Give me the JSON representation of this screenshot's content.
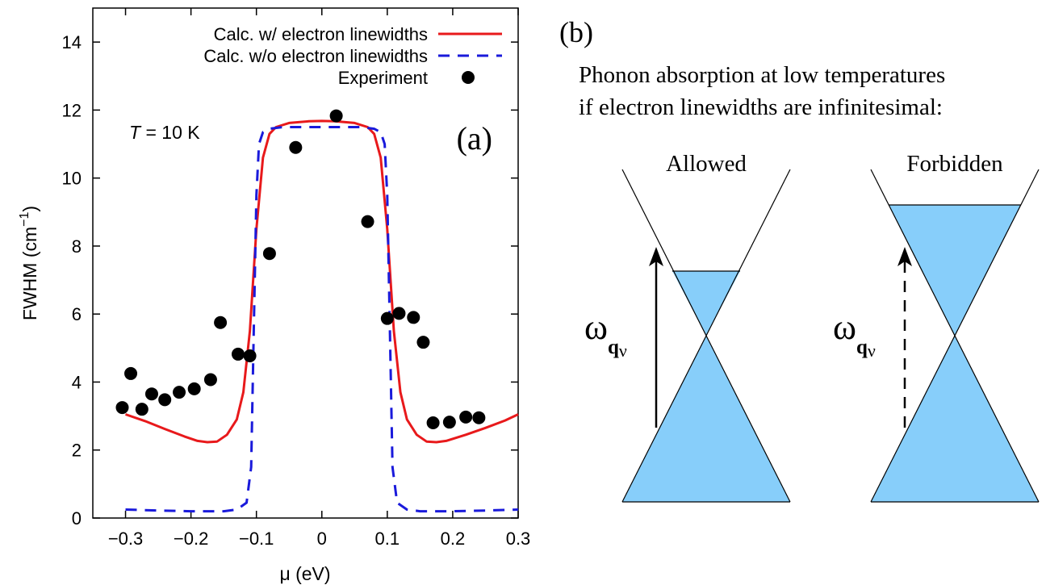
{
  "chart_data": {
    "type": "line",
    "panel_label": "(a)",
    "annotation": {
      "italic": "T",
      "rest": " = 10 K"
    },
    "xlabel": "μ (eV)",
    "ylabel_main": "FWHM (cm",
    "ylabel_sup": "−1",
    "ylabel_close": ")",
    "xlim": [
      -0.35,
      0.3
    ],
    "ylim": [
      0,
      15
    ],
    "xticks": [
      {
        "v": -0.3,
        "label": "−0.3"
      },
      {
        "v": -0.2,
        "label": "−0.2"
      },
      {
        "v": -0.1,
        "label": "−0.1"
      },
      {
        "v": 0,
        "label": "0"
      },
      {
        "v": 0.1,
        "label": "0.1"
      },
      {
        "v": 0.2,
        "label": "0.2"
      },
      {
        "v": 0.3,
        "label": "0.3"
      }
    ],
    "yticks": [
      {
        "v": 0,
        "label": "0"
      },
      {
        "v": 2,
        "label": "2"
      },
      {
        "v": 4,
        "label": "4"
      },
      {
        "v": 6,
        "label": "6"
      },
      {
        "v": 8,
        "label": "8"
      },
      {
        "v": 10,
        "label": "10"
      },
      {
        "v": 12,
        "label": "12"
      },
      {
        "v": 14,
        "label": "14"
      }
    ],
    "legend_position": "top-right",
    "series": [
      {
        "name": "Calc. w/ electron linewidths",
        "style": "solid",
        "color": "#e8191b",
        "x": [
          -0.3,
          -0.27,
          -0.24,
          -0.21,
          -0.19,
          -0.175,
          -0.16,
          -0.145,
          -0.13,
          -0.12,
          -0.11,
          -0.1,
          -0.09,
          -0.08,
          -0.07,
          -0.05,
          -0.02,
          0,
          0.02,
          0.05,
          0.07,
          0.08,
          0.09,
          0.1,
          0.11,
          0.12,
          0.13,
          0.145,
          0.16,
          0.175,
          0.19,
          0.22,
          0.25,
          0.28,
          0.3
        ],
        "y": [
          3.05,
          2.85,
          2.62,
          2.4,
          2.27,
          2.23,
          2.25,
          2.45,
          2.9,
          3.7,
          5.5,
          8.5,
          10.6,
          11.3,
          11.5,
          11.62,
          11.67,
          11.68,
          11.67,
          11.62,
          11.5,
          11.3,
          10.6,
          8.5,
          5.5,
          3.7,
          2.9,
          2.45,
          2.25,
          2.23,
          2.27,
          2.45,
          2.65,
          2.87,
          3.05
        ]
      },
      {
        "name": "Calc. w/o electron linewidths",
        "style": "dashed",
        "color": "#1a1adb",
        "x": [
          -0.3,
          -0.25,
          -0.2,
          -0.15,
          -0.13,
          -0.115,
          -0.108,
          -0.104,
          -0.1,
          -0.096,
          -0.09,
          -0.08,
          -0.06,
          0,
          0.06,
          0.08,
          0.09,
          0.096,
          0.1,
          0.104,
          0.108,
          0.115,
          0.13,
          0.15,
          0.2,
          0.25,
          0.3
        ],
        "y": [
          0.25,
          0.22,
          0.2,
          0.2,
          0.25,
          0.45,
          1.5,
          5.5,
          9.5,
          11.0,
          11.35,
          11.45,
          11.5,
          11.5,
          11.5,
          11.45,
          11.35,
          11.0,
          9.5,
          5.5,
          1.5,
          0.45,
          0.25,
          0.2,
          0.2,
          0.22,
          0.25
        ]
      },
      {
        "name": "Experiment",
        "style": "points",
        "color": "#000000",
        "x": [
          -0.305,
          -0.292,
          -0.275,
          -0.26,
          -0.24,
          -0.218,
          -0.195,
          -0.17,
          -0.155,
          -0.128,
          -0.11,
          -0.08,
          -0.04,
          0.022,
          0.07,
          0.1,
          0.118,
          0.14,
          0.155,
          0.17,
          0.195,
          0.22,
          0.24
        ],
        "y": [
          3.25,
          4.25,
          3.2,
          3.65,
          3.48,
          3.7,
          3.8,
          4.07,
          5.75,
          4.82,
          4.77,
          7.78,
          10.9,
          11.83,
          8.72,
          5.87,
          6.02,
          5.9,
          5.17,
          2.8,
          2.82,
          2.97,
          2.95
        ]
      }
    ]
  },
  "panel_b": {
    "label": "(b)",
    "caption_line1": "Phonon absorption at low temperatures",
    "caption_line2": "if electron linewidths are infinitesimal:",
    "cones": [
      {
        "title": "Allowed",
        "omega": "ω",
        "sub_q": "q",
        "sub_nu": "ν",
        "arrow": "solid"
      },
      {
        "title": "Forbidden",
        "omega": "ω",
        "sub_q": "q",
        "sub_nu": "ν",
        "arrow": "dashed"
      }
    ],
    "fill_color": "#87cefa"
  }
}
